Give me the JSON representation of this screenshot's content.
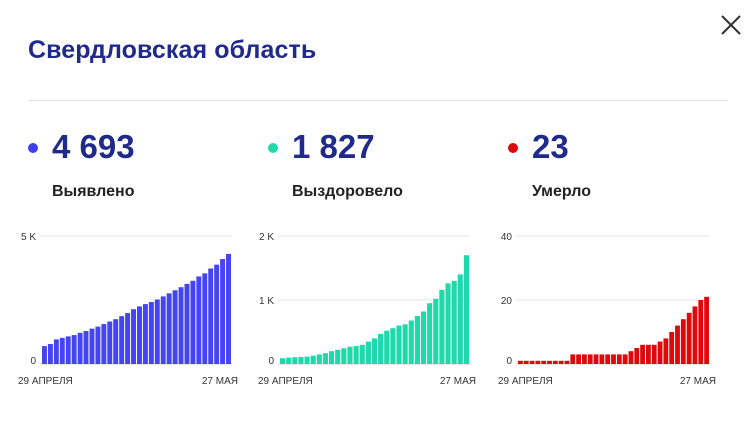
{
  "header": {
    "title": "Свердловская область",
    "close_icon": "close-icon"
  },
  "stats": [
    {
      "value": "4 693",
      "label": "Выявлено",
      "color": "#3e3ef0"
    },
    {
      "value": "1 827",
      "label": "Выздоровело",
      "color": "#1ed9aa"
    },
    {
      "value": "23",
      "label": "Умерло",
      "color": "#dc0a0a"
    }
  ],
  "chart_data": [
    {
      "type": "bar",
      "color": "#4444f0",
      "x_start_label": "29 АПРЕЛЯ",
      "x_end_label": "27 МАЯ",
      "y_ticks": [
        {
          "value": 0,
          "label": "0"
        },
        {
          "value": 5000,
          "label": "5 K"
        }
      ],
      "ylim": [
        0,
        5000
      ],
      "values": [
        700,
        780,
        960,
        1020,
        1080,
        1130,
        1220,
        1290,
        1380,
        1460,
        1560,
        1660,
        1750,
        1870,
        1990,
        2140,
        2250,
        2340,
        2420,
        2520,
        2640,
        2760,
        2880,
        3000,
        3130,
        3250,
        3420,
        3540,
        3730,
        3880,
        4100,
        4300
      ]
    },
    {
      "type": "bar",
      "color": "#1ed9aa",
      "x_start_label": "29 АПРЕЛЯ",
      "x_end_label": "27 МАЯ",
      "y_ticks": [
        {
          "value": 0,
          "label": "0"
        },
        {
          "value": 1000,
          "label": "1 K"
        },
        {
          "value": 2000,
          "label": "2 K"
        }
      ],
      "ylim": [
        0,
        2000
      ],
      "values": [
        90,
        100,
        105,
        110,
        115,
        130,
        150,
        170,
        200,
        220,
        245,
        270,
        280,
        300,
        350,
        400,
        470,
        520,
        560,
        600,
        620,
        680,
        750,
        820,
        950,
        1020,
        1160,
        1260,
        1300,
        1400,
        1700
      ]
    },
    {
      "type": "bar",
      "color": "#dc0a0a",
      "x_start_label": "29 АПРЕЛЯ",
      "x_end_label": "27 МАЯ",
      "y_ticks": [
        {
          "value": 0,
          "label": "0"
        },
        {
          "value": 20,
          "label": "20"
        },
        {
          "value": 40,
          "label": "40"
        }
      ],
      "ylim": [
        0,
        40
      ],
      "values": [
        1,
        1,
        1,
        1,
        1,
        1,
        1,
        1,
        1,
        3,
        3,
        3,
        3,
        3,
        3,
        3,
        3,
        3,
        3,
        4,
        5,
        6,
        6,
        6,
        7,
        8,
        10,
        12,
        14,
        16,
        18,
        20,
        21
      ]
    }
  ]
}
